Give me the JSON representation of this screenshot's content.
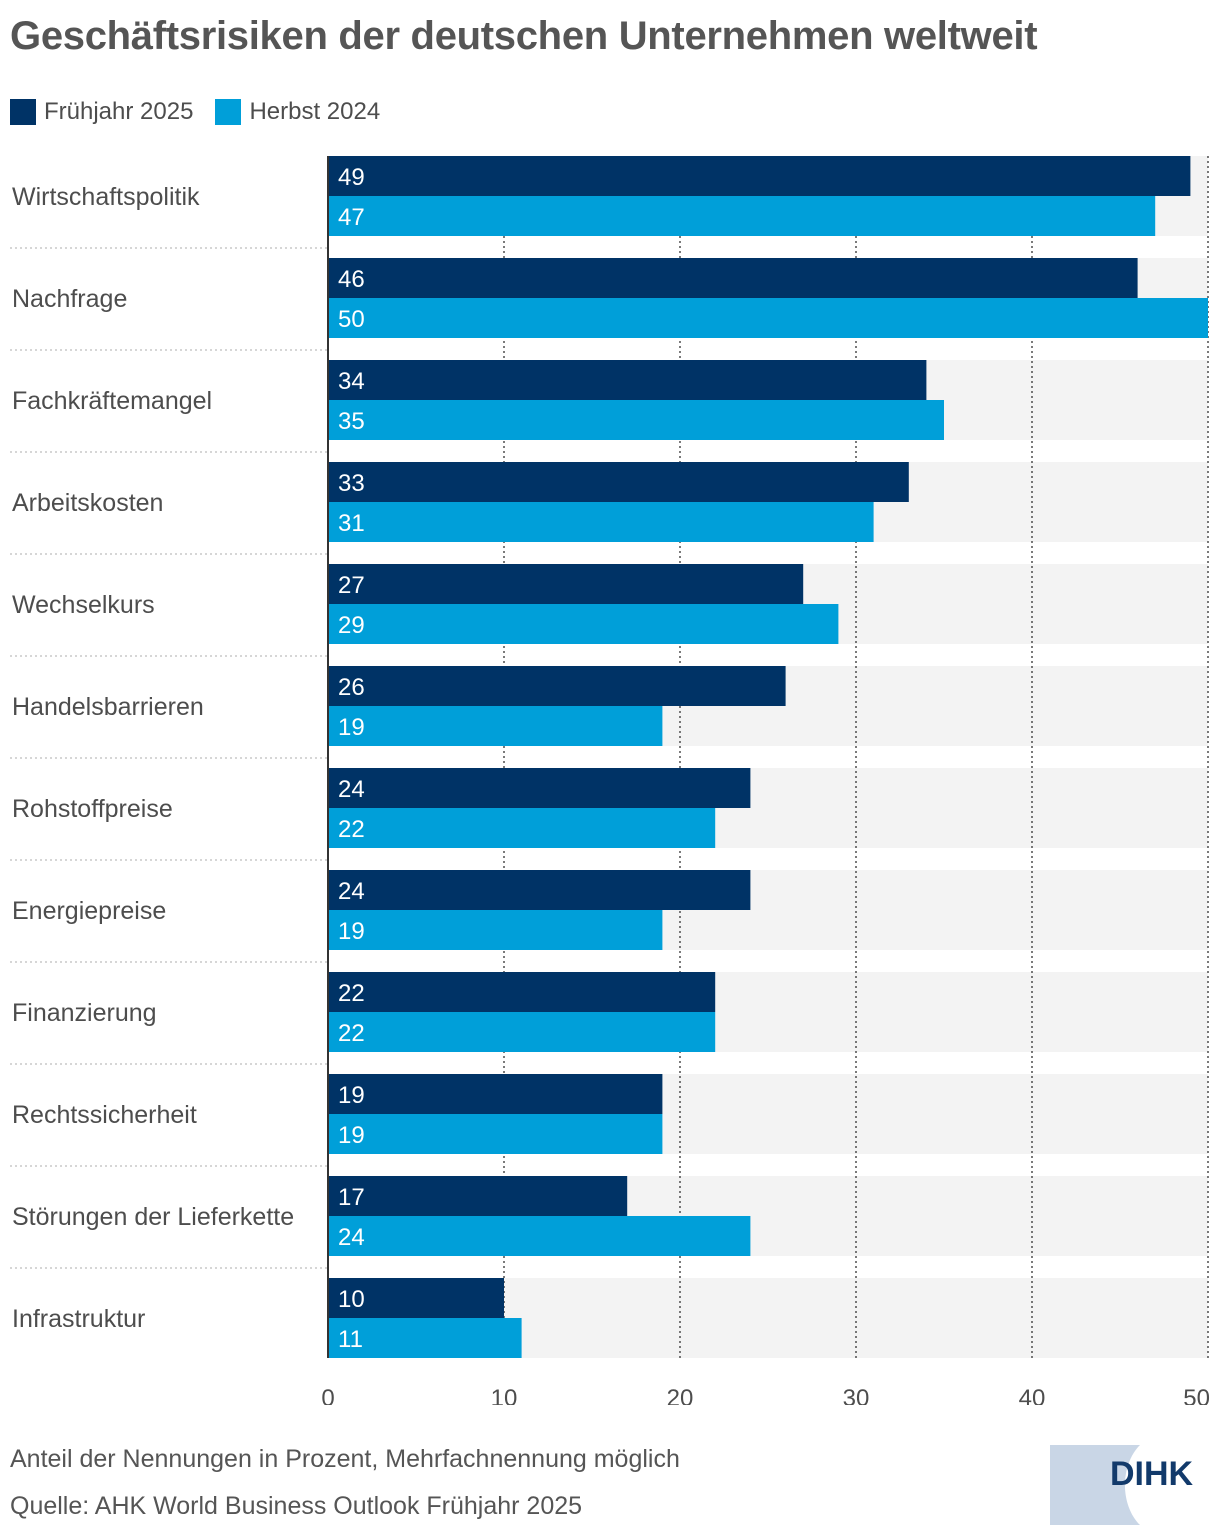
{
  "title": "Geschäftsrisiken der deutschen Unternehmen weltweit",
  "legend": [
    {
      "label": "Frühjahr 2025",
      "color": "#003366"
    },
    {
      "label": "Herbst 2024",
      "color": "#009fd9"
    }
  ],
  "chart_data": {
    "type": "bar",
    "orientation": "horizontal",
    "title": "Geschäftsrisiken der deutschen Unternehmen weltweit",
    "categories": [
      "Wirtschaftspolitik",
      "Nachfrage",
      "Fachkräftemangel",
      "Arbeitskosten",
      "Wechselkurs",
      "Handelsbarrieren",
      "Rohstoffpreise",
      "Energiepreise",
      "Finanzierung",
      "Rechtssicherheit",
      "Störungen der Lieferkette",
      "Infrastruktur"
    ],
    "series": [
      {
        "name": "Frühjahr 2025",
        "color": "#003366",
        "values": [
          49,
          46,
          34,
          33,
          27,
          26,
          24,
          24,
          22,
          19,
          17,
          10
        ]
      },
      {
        "name": "Herbst 2024",
        "color": "#009fd9",
        "values": [
          47,
          50,
          35,
          31,
          29,
          19,
          22,
          19,
          22,
          19,
          24,
          11
        ]
      }
    ],
    "xlim": [
      0,
      50
    ],
    "xticks": [
      "0",
      "10",
      "20",
      "30",
      "40",
      "50"
    ],
    "grid": true,
    "legend_position": "top-left",
    "xlabel": "",
    "ylabel": ""
  },
  "footer": {
    "note": "Anteil der Nennungen in Prozent, Mehrfachnennung möglich",
    "source": "Quelle: AHK World Business Outlook Frühjahr 2025"
  },
  "logo": {
    "text": "DIHK",
    "color": "#123a6b",
    "background": "#c9d6e6"
  }
}
